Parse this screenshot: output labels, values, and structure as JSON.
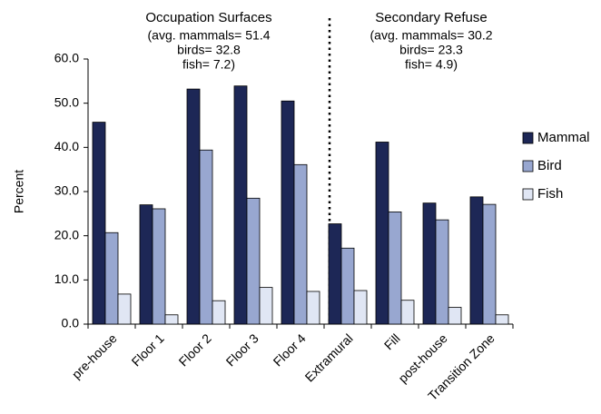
{
  "chart_data": {
    "type": "bar",
    "ylabel": "Percent",
    "categories": [
      "pre-house",
      "Floor 1",
      "Floor 2",
      "Floor 3",
      "Floor 4",
      "Extramural",
      "Fill",
      "post-house",
      "Transition Zone"
    ],
    "series": [
      {
        "name": "Mammal",
        "color": "#1d2756",
        "values": [
          45.7,
          27.0,
          53.2,
          53.9,
          50.5,
          22.7,
          41.2,
          27.4,
          28.8
        ]
      },
      {
        "name": "Bird",
        "color": "#98a7d0",
        "values": [
          20.7,
          26.1,
          39.4,
          28.5,
          36.1,
          17.2,
          25.4,
          23.6,
          27.1
        ]
      },
      {
        "name": "Fish",
        "color": "#e0e6f4",
        "values": [
          6.8,
          2.1,
          5.3,
          8.3,
          7.4,
          7.6,
          5.4,
          3.8,
          2.1
        ]
      }
    ],
    "ylim": [
      0,
      60
    ],
    "yticks": [
      {
        "value": 0,
        "label": "0.0"
      },
      {
        "value": 10,
        "label": "10.0"
      },
      {
        "value": 20,
        "label": "20.0"
      },
      {
        "value": 30,
        "label": "30.0"
      },
      {
        "value": 40,
        "label": "40.0"
      },
      {
        "value": 50,
        "label": "50.0"
      },
      {
        "value": 60,
        "label": "60.0"
      }
    ],
    "legend": "right",
    "annotations": [
      {
        "title": "Occupation Surfaces",
        "lines": [
          "(avg. mammals= 51.4",
          "birds= 32.8",
          "fish= 7.2)"
        ]
      },
      {
        "title": "Secondary Refuse",
        "lines": [
          "(avg. mammals= 30.2",
          "birds= 23.3",
          "fish= 4.9)"
        ]
      }
    ]
  }
}
